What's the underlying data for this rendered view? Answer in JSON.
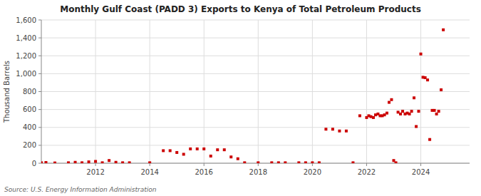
{
  "chart_data": {
    "type": "scatter",
    "title": "Monthly Gulf Coast (PADD 3) Exports to Kenya of Total Petroleum Products",
    "y_label": "Thousand Barrels",
    "annotations": [
      "Source: U.S. Energy Information Administration"
    ],
    "color": "#cc0000",
    "marker": "square",
    "grid": true,
    "xlim": [
      2010.0,
      2025.8
    ],
    "xticks": [
      2012,
      2014,
      2016,
      2018,
      2020,
      2022,
      2024
    ],
    "ylim": [
      0,
      1600
    ],
    "yticks": [
      0,
      200,
      400,
      600,
      800,
      {
        "value": 1000,
        "label": "1,000"
      },
      {
        "value": 1200,
        "label": "1,200"
      },
      {
        "value": 1400,
        "label": "1,400"
      },
      {
        "value": 1600,
        "label": "1,600"
      }
    ],
    "x": [
      2010.0,
      2010.17,
      2010.5,
      2011.0,
      2011.25,
      2011.5,
      2011.75,
      2012.0,
      2012.25,
      2012.5,
      2012.75,
      2013.0,
      2013.25,
      2014.0,
      2014.5,
      2014.75,
      2015.0,
      2015.25,
      2015.5,
      2015.75,
      2016.0,
      2016.25,
      2016.5,
      2016.75,
      2017.0,
      2017.25,
      2017.5,
      2018.0,
      2018.5,
      2018.75,
      2019.0,
      2019.5,
      2019.75,
      2020.0,
      2020.25,
      2020.5,
      2020.75,
      2021.0,
      2021.25,
      2021.5,
      2021.75,
      2022.0,
      2022.08,
      2022.16,
      2022.25,
      2022.33,
      2022.42,
      2022.5,
      2022.58,
      2022.66,
      2022.75,
      2022.83,
      2022.92,
      2023.0,
      2023.08,
      2023.16,
      2023.25,
      2023.33,
      2023.42,
      2023.5,
      2023.58,
      2023.66,
      2023.75,
      2023.83,
      2023.92,
      2024.0,
      2024.08,
      2024.16,
      2024.25,
      2024.33,
      2024.42,
      2024.5,
      2024.58,
      2024.66,
      2024.75,
      2024.83
    ],
    "values": [
      5,
      8,
      3,
      5,
      10,
      5,
      15,
      20,
      5,
      30,
      10,
      5,
      5,
      5,
      140,
      140,
      120,
      100,
      160,
      160,
      160,
      80,
      150,
      150,
      70,
      50,
      5,
      5,
      5,
      5,
      5,
      5,
      5,
      5,
      5,
      380,
      380,
      360,
      360,
      5,
      530,
      510,
      530,
      520,
      510,
      540,
      550,
      530,
      530,
      540,
      560,
      680,
      710,
      30,
      5,
      570,
      550,
      580,
      550,
      560,
      550,
      580,
      730,
      410,
      580,
      1220,
      960,
      955,
      930,
      265,
      590,
      590,
      550,
      580,
      820,
      1490
    ]
  }
}
